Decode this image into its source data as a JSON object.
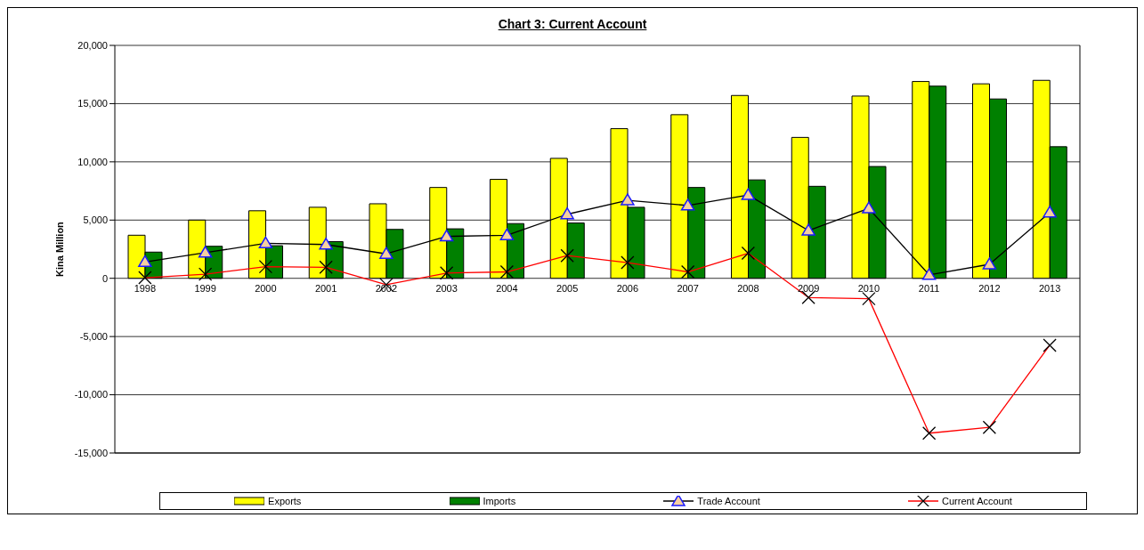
{
  "chart_data": {
    "type": "bar",
    "title": "Chart 3: Current Account",
    "ylabel": "Kina Million",
    "categories": [
      "1998",
      "1999",
      "2000",
      "2001",
      "2002",
      "2003",
      "2004",
      "2005",
      "2006",
      "2007",
      "2008",
      "2009",
      "2010",
      "2011",
      "2012",
      "2013"
    ],
    "series": [
      {
        "name": "Exports",
        "color": "#ffff00",
        "values": [
          3700,
          5000,
          5800,
          6100,
          6400,
          7800,
          8500,
          10300,
          12850,
          14050,
          15700,
          12100,
          15650,
          16900,
          16700,
          17000
        ]
      },
      {
        "name": "Imports",
        "color": "#008000",
        "values": [
          2250,
          2750,
          2800,
          3150,
          4200,
          4250,
          4700,
          4750,
          6100,
          7800,
          8450,
          7900,
          9600,
          16500,
          15400,
          11300
        ]
      },
      {
        "name": "Trade Account",
        "type": "line",
        "color": "#000000",
        "marker": "triangle",
        "values": [
          1400,
          2200,
          3000,
          2900,
          2100,
          3600,
          3700,
          5500,
          6700,
          6250,
          7150,
          4100,
          6000,
          300,
          1200,
          5650
        ]
      },
      {
        "name": "Current Account",
        "type": "line",
        "color": "#ff0000",
        "marker": "cross",
        "values": [
          50,
          350,
          1000,
          950,
          -550,
          450,
          550,
          1950,
          1350,
          550,
          2150,
          -1650,
          -1750,
          -13300,
          -12800,
          -5750
        ]
      }
    ],
    "ylim": [
      -15000,
      20000
    ],
    "yticks": [
      {
        "value": -15000,
        "label": "-15,000"
      },
      {
        "value": -10000,
        "label": "-10,000"
      },
      {
        "value": -5000,
        "label": "-5,000"
      },
      {
        "value": 0,
        "label": "0"
      },
      {
        "value": 5000,
        "label": "5,000"
      },
      {
        "value": 10000,
        "label": "10,000"
      },
      {
        "value": 15000,
        "label": "15,000"
      },
      {
        "value": 20000,
        "label": "20,000"
      }
    ],
    "grid": "y",
    "legend": "bottom"
  }
}
